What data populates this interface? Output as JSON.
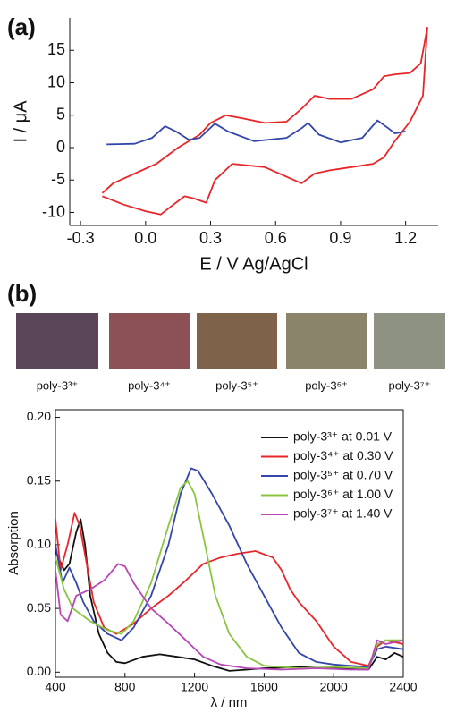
{
  "panel_labels": [
    "(a)",
    "(b)"
  ],
  "swatches": [
    {
      "label": "poly-3³⁺",
      "color": "#5b4659"
    },
    {
      "label": "poly-3⁴⁺",
      "color": "#8c5155"
    },
    {
      "label": "poly-3⁵⁺",
      "color": "#7e6249"
    },
    {
      "label": "poly-3⁶⁺",
      "color": "#8a846b"
    },
    {
      "label": "poly-3⁷⁺",
      "color": "#8d9283"
    }
  ],
  "chart_data": [
    {
      "type": "line",
      "x_label": "E / V Ag/AgCl",
      "y_label": "I / μA",
      "xlim": [
        -0.35,
        1.35
      ],
      "ylim": [
        -12,
        20
      ],
      "xticks": [
        -0.3,
        {
          "value": 0,
          "label": "0.0"
        },
        0.3,
        0.6,
        0.9,
        1.2
      ],
      "yticks": [
        -10,
        -5,
        0,
        5,
        10,
        15
      ],
      "series": [
        {
          "color": "#e8262a",
          "x": [
            -0.2,
            -0.15,
            -0.05,
            0.05,
            0.15,
            0.25,
            0.3,
            0.37,
            0.45,
            0.55,
            0.65,
            0.72,
            0.78,
            0.85,
            0.95,
            1.05,
            1.1,
            1.15,
            1.22,
            1.27,
            1.3,
            1.28,
            1.22,
            1.15,
            1.1,
            1.05,
            0.95,
            0.85,
            0.78,
            0.72,
            0.65,
            0.55,
            0.4,
            0.32,
            0.28,
            0.22,
            0.18,
            0.12,
            0.07,
            0.0,
            -0.1,
            -0.2
          ],
          "values": [
            -7,
            -5.5,
            -4,
            -2.5,
            0,
            2,
            3.8,
            5,
            4.5,
            3.8,
            4,
            6,
            8,
            7.5,
            7.5,
            9,
            11,
            11.3,
            11.5,
            13,
            18.5,
            8,
            4,
            1,
            -1.5,
            -2.5,
            -3,
            -3.5,
            -4,
            -5.5,
            -4.5,
            -3,
            -2.5,
            -5,
            -8.5,
            -7.8,
            -7.5,
            -9,
            -10.3,
            -9.8,
            -8.8,
            -7.5
          ]
        },
        {
          "color": "#3446a8",
          "x": [
            -0.18,
            -0.05,
            0.03,
            0.09,
            0.14,
            0.2,
            0.25,
            0.32,
            0.38,
            0.5,
            0.65,
            0.72,
            0.75,
            0.8,
            0.9,
            1.0,
            1.07,
            1.12,
            1.15,
            1.2
          ],
          "values": [
            0.5,
            0.6,
            1.5,
            3.3,
            2.5,
            1.2,
            1.5,
            3.7,
            2.5,
            1,
            1.5,
            3,
            3.8,
            2,
            0.8,
            1.5,
            4.2,
            3,
            2.2,
            2.5
          ]
        }
      ]
    },
    {
      "type": "line",
      "x_label": "λ / nm",
      "y_label": "Absorption",
      "xlim": [
        400,
        2400
      ],
      "ylim": [
        -0.004,
        0.206
      ],
      "xticks": [
        400,
        800,
        1200,
        1600,
        2000,
        2400
      ],
      "yticks": [
        {
          "value": 0,
          "label": "0.00"
        },
        0.05,
        {
          "value": 0.1,
          "label": "0.10"
        },
        0.15,
        {
          "value": 0.2,
          "label": "0.20"
        }
      ],
      "series": [
        {
          "name": "poly-3³⁺ at 0.01 V",
          "color": "#111111",
          "x": [
            400,
            450,
            480,
            520,
            545,
            570,
            600,
            650,
            700,
            750,
            800,
            900,
            1000,
            1100,
            1200,
            1300,
            1400,
            1500,
            1600,
            1800,
            2000,
            2200,
            2250,
            2300,
            2350,
            2400
          ],
          "values": [
            0.095,
            0.08,
            0.085,
            0.11,
            0.12,
            0.1,
            0.06,
            0.03,
            0.015,
            0.008,
            0.007,
            0.012,
            0.014,
            0.012,
            0.01,
            0.005,
            0.001,
            0.002,
            0.003,
            0.004,
            0.003,
            0.002,
            0.012,
            0.01,
            0.015,
            0.012
          ]
        },
        {
          "name": "poly-3⁴⁺ at 0.30 V",
          "color": "#e8262a",
          "x": [
            400,
            430,
            470,
            510,
            540,
            580,
            620,
            680,
            750,
            850,
            950,
            1050,
            1150,
            1250,
            1350,
            1450,
            1550,
            1650,
            1700,
            1750,
            1800,
            1900,
            2000,
            2100,
            2200,
            2250,
            2300,
            2400
          ],
          "values": [
            0.12,
            0.08,
            0.1,
            0.125,
            0.115,
            0.085,
            0.055,
            0.035,
            0.03,
            0.038,
            0.05,
            0.06,
            0.072,
            0.085,
            0.09,
            0.093,
            0.095,
            0.09,
            0.08,
            0.065,
            0.055,
            0.04,
            0.02,
            0.008,
            0.005,
            0.02,
            0.025,
            0.022
          ]
        },
        {
          "name": "poly-3⁵⁺ at 0.70 V",
          "color": "#3446a8",
          "x": [
            400,
            440,
            480,
            520,
            560,
            620,
            700,
            780,
            850,
            950,
            1050,
            1120,
            1180,
            1220,
            1300,
            1400,
            1500,
            1600,
            1700,
            1800,
            1900,
            2000,
            2200,
            2250,
            2300,
            2400
          ],
          "values": [
            0.1,
            0.07,
            0.082,
            0.07,
            0.055,
            0.04,
            0.03,
            0.025,
            0.035,
            0.06,
            0.1,
            0.14,
            0.16,
            0.158,
            0.14,
            0.115,
            0.085,
            0.06,
            0.035,
            0.015,
            0.008,
            0.006,
            0.004,
            0.018,
            0.02,
            0.018
          ]
        },
        {
          "name": "poly-3⁶⁺ at 1.00 V",
          "color": "#8bc53f",
          "x": [
            400,
            450,
            500,
            600,
            700,
            780,
            850,
            950,
            1050,
            1120,
            1160,
            1200,
            1260,
            1320,
            1400,
            1500,
            1600,
            1800,
            2000,
            2200,
            2250,
            2300,
            2400
          ],
          "values": [
            0.09,
            0.065,
            0.05,
            0.04,
            0.033,
            0.03,
            0.04,
            0.07,
            0.115,
            0.145,
            0.15,
            0.14,
            0.1,
            0.06,
            0.03,
            0.012,
            0.005,
            0.003,
            0.004,
            0.003,
            0.022,
            0.025,
            0.025
          ]
        },
        {
          "name": "poly-3⁷⁺ at 1.40 V",
          "color": "#b847b5",
          "x": [
            400,
            430,
            470,
            520,
            600,
            680,
            760,
            800,
            850,
            950,
            1050,
            1150,
            1250,
            1350,
            1500,
            1700,
            1900,
            2100,
            2200,
            2250,
            2300,
            2400
          ],
          "values": [
            0.08,
            0.045,
            0.04,
            0.06,
            0.065,
            0.072,
            0.085,
            0.083,
            0.07,
            0.05,
            0.038,
            0.025,
            0.012,
            0.006,
            0.003,
            0.002,
            0.003,
            0.002,
            0.002,
            0.025,
            0.022,
            0.025
          ]
        }
      ]
    }
  ]
}
